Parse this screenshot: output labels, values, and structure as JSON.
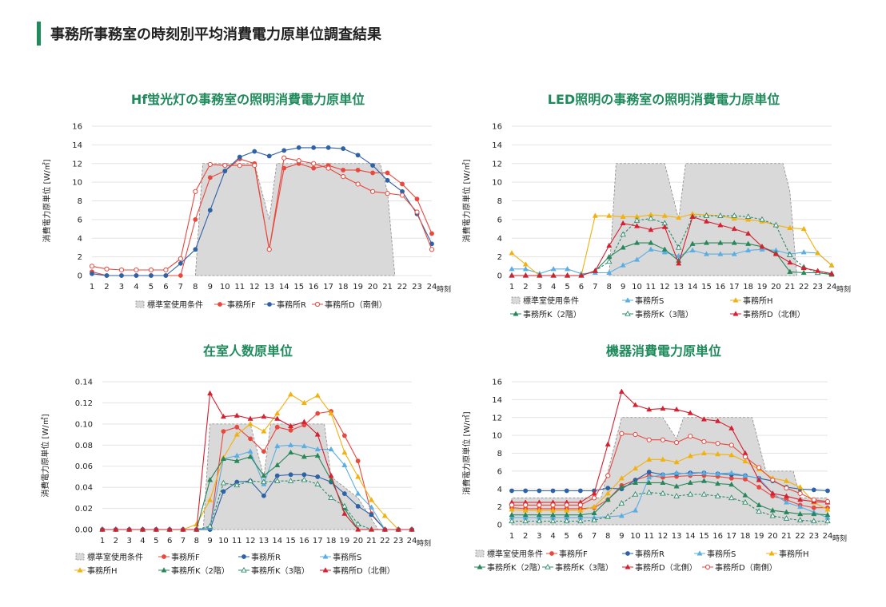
{
  "page": {
    "title": "事務所事務室の時刻別平均消費電力原単位調査結果"
  },
  "colors": {
    "accent": "#1f8a5c",
    "standard_fill": "#d9d9d9",
    "standard_stroke": "#8c8c8c",
    "F": "#e8483e",
    "R": "#2e62a6",
    "D_south": "#e8483e",
    "S": "#5aaee3",
    "H": "#f2b10c",
    "K2": "#27875a",
    "K3": "#2e8b6a",
    "D_north": "#d62030"
  },
  "chart_data": [
    {
      "type": "line",
      "title": "Hf蛍光灯の事務室の照明消費電力原単位",
      "ylabel": "消費電力原単位 [W/㎡]",
      "xunit": "時刻",
      "x": [
        1,
        2,
        3,
        4,
        5,
        6,
        7,
        8,
        9,
        10,
        11,
        12,
        13,
        14,
        15,
        16,
        17,
        18,
        19,
        20,
        21,
        22,
        23,
        24
      ],
      "ylim": [
        0,
        16
      ],
      "yticks": [
        "0",
        "2",
        "4",
        "6",
        "8",
        "10",
        "12",
        "14",
        "16"
      ],
      "grid": true,
      "legend_position": "bottom",
      "standard": {
        "name": "標準室使用条件",
        "points": [
          [
            8,
            0
          ],
          [
            8.5,
            12
          ],
          [
            12,
            12
          ],
          [
            13,
            6
          ],
          [
            13.5,
            12
          ],
          [
            20.5,
            12
          ],
          [
            21,
            9
          ],
          [
            21.5,
            0
          ]
        ]
      },
      "series": [
        {
          "name": "事務所F",
          "color": "#e8483e",
          "marker": "circle",
          "values": [
            0.4,
            0,
            0,
            0,
            0,
            0,
            0,
            6,
            10.5,
            11.2,
            12.5,
            12,
            2.8,
            11.5,
            12,
            11.5,
            11.8,
            11.3,
            11.3,
            11,
            11,
            9.8,
            8.2,
            4.5
          ]
        },
        {
          "name": "事務所R",
          "color": "#2e62a6",
          "marker": "circle",
          "values": [
            0.2,
            0,
            0,
            0,
            0,
            0,
            1.3,
            2.8,
            7,
            11.2,
            12.7,
            13.3,
            12.8,
            13.4,
            13.7,
            13.7,
            13.7,
            13.6,
            12.9,
            11.8,
            10.2,
            9,
            6.6,
            3.4
          ]
        },
        {
          "name": "事務所D（南側）",
          "color": "#e8483e",
          "marker": "open-circle",
          "values": [
            1,
            0.7,
            0.6,
            0.6,
            0.6,
            0.6,
            1.8,
            9,
            11.9,
            11.8,
            11.8,
            11.8,
            2.8,
            12.6,
            12.3,
            12,
            11.5,
            10.6,
            9.8,
            9,
            8.8,
            8.6,
            6.8,
            2.8
          ]
        }
      ]
    },
    {
      "type": "line",
      "title": "LED照明の事務室の照明消費電力原単位",
      "ylabel": "消費電力原単位 [W/㎡]",
      "xunit": "時刻",
      "x": [
        1,
        2,
        3,
        4,
        5,
        6,
        7,
        8,
        9,
        10,
        11,
        12,
        13,
        14,
        15,
        16,
        17,
        18,
        19,
        20,
        21,
        22,
        23,
        24
      ],
      "ylim": [
        0,
        16
      ],
      "yticks": [
        "0",
        "2",
        "4",
        "6",
        "8",
        "10",
        "12",
        "14",
        "16"
      ],
      "grid": true,
      "legend_position": "bottom",
      "standard": {
        "name": "標準室使用条件",
        "points": [
          [
            8,
            0
          ],
          [
            8.5,
            12
          ],
          [
            12,
            12
          ],
          [
            13,
            6
          ],
          [
            13.5,
            12
          ],
          [
            20.5,
            12
          ],
          [
            21,
            9
          ],
          [
            21.5,
            0
          ]
        ]
      },
      "series": [
        {
          "name": "事務所S",
          "color": "#5aaee3",
          "marker": "triangle",
          "values": [
            0.7,
            0.7,
            0.2,
            0.7,
            0.7,
            0.2,
            0.3,
            0.3,
            1.1,
            1.7,
            2.8,
            2.5,
            2.1,
            2.7,
            2.3,
            2.3,
            2.3,
            2.7,
            2.8,
            2.7,
            2.3,
            2.5,
            2.4,
            1.1
          ]
        },
        {
          "name": "事務所H",
          "color": "#f2b10c",
          "marker": "triangle",
          "values": [
            2.4,
            1.2,
            0,
            0,
            0,
            0,
            6.4,
            6.4,
            6.3,
            6.3,
            6.5,
            6.4,
            6.2,
            6.6,
            6.5,
            6.4,
            6.1,
            6,
            5.8,
            5.4,
            5.1,
            5,
            2.4,
            1.1
          ]
        },
        {
          "name": "事務所K（2階）",
          "color": "#27875a",
          "marker": "triangle",
          "values": [
            0,
            0,
            0,
            0,
            0,
            0,
            0.5,
            2,
            3,
            3.5,
            3.5,
            2.8,
            1.6,
            3.4,
            3.5,
            3.5,
            3.5,
            3.4,
            3.1,
            2.4,
            0.4,
            0.3,
            0.3,
            0.1
          ]
        },
        {
          "name": "事務所K（3階）",
          "color": "#2e8b6a",
          "marker": "triangle-open",
          "values": [
            0,
            0,
            0,
            0,
            0,
            0,
            0.5,
            1.5,
            4.4,
            5.9,
            6.1,
            5.6,
            3,
            6.3,
            6.4,
            6.4,
            6.4,
            6.3,
            6,
            5.4,
            2.2,
            0.9,
            0.3,
            0.2
          ]
        },
        {
          "name": "事務所D（北側）",
          "color": "#d62030",
          "marker": "triangle",
          "values": [
            0,
            0,
            0,
            0,
            0,
            0,
            0.5,
            3.2,
            5.6,
            5.3,
            4.9,
            5.2,
            1.3,
            6.3,
            5.8,
            5.4,
            5,
            4.5,
            3.1,
            2.3,
            1.4,
            0.8,
            0.5,
            0.2
          ]
        }
      ]
    },
    {
      "type": "line",
      "title": "在室人数原単位",
      "ylabel": "消費電力原単位 [W/㎡]",
      "xunit": "時刻",
      "x": [
        1,
        2,
        3,
        4,
        5,
        6,
        7,
        8,
        9,
        10,
        11,
        12,
        13,
        14,
        15,
        16,
        17,
        18,
        19,
        20,
        21,
        22,
        23,
        24
      ],
      "ylim": [
        0,
        0.14
      ],
      "yticks": [
        "0.00",
        "0.02",
        "0.04",
        "0.06",
        "0.08",
        "0.10",
        "0.12",
        "0.14"
      ],
      "grid": true,
      "legend_position": "bottom",
      "standard": {
        "name": "標準室使用条件",
        "points": [
          [
            8.5,
            0
          ],
          [
            9,
            0.1
          ],
          [
            12,
            0.1
          ],
          [
            13,
            0.05
          ],
          [
            13.5,
            0.1
          ],
          [
            17.5,
            0.1
          ],
          [
            18,
            0.05
          ],
          [
            20,
            0.03
          ],
          [
            21.5,
            0
          ]
        ]
      },
      "series": [
        {
          "name": "事務所F",
          "color": "#e8483e",
          "marker": "circle",
          "values": [
            0,
            0,
            0,
            0,
            0,
            0,
            0,
            0,
            0,
            0.093,
            0.097,
            0.086,
            0.074,
            0.097,
            0.094,
            0.099,
            0.11,
            0.112,
            0.089,
            0.065,
            0.015,
            0,
            0,
            0
          ]
        },
        {
          "name": "事務所R",
          "color": "#2e62a6",
          "marker": "circle",
          "values": [
            0,
            0,
            0,
            0,
            0,
            0,
            0,
            0,
            0,
            0.036,
            0.045,
            0.046,
            0.032,
            0.051,
            0.052,
            0.052,
            0.05,
            0.045,
            0.034,
            0.022,
            0.014,
            0,
            0,
            0
          ]
        },
        {
          "name": "事務所S",
          "color": "#5aaee3",
          "marker": "triangle",
          "values": [
            0,
            0,
            0,
            0,
            0,
            0,
            0,
            0,
            0.002,
            0.067,
            0.07,
            0.074,
            0.043,
            0.079,
            0.08,
            0.079,
            0.076,
            0.076,
            0.061,
            0.034,
            0.021,
            0,
            0,
            0
          ]
        },
        {
          "name": "事務所H",
          "color": "#f2b10c",
          "marker": "triangle",
          "values": [
            0,
            0,
            0,
            0,
            0,
            0,
            0,
            0.005,
            0.028,
            0.068,
            0.09,
            0.1,
            0.093,
            0.11,
            0.128,
            0.12,
            0.127,
            0.11,
            0.073,
            0.05,
            0.028,
            0.013,
            0,
            0
          ]
        },
        {
          "name": "事務所K（2階）",
          "color": "#27875a",
          "marker": "triangle",
          "values": [
            0,
            0,
            0,
            0,
            0,
            0,
            0,
            0,
            0.047,
            0.067,
            0.065,
            0.069,
            0.051,
            0.061,
            0.073,
            0.069,
            0.07,
            0.047,
            0.02,
            0,
            0,
            0,
            0,
            0
          ]
        },
        {
          "name": "事務所K（3階）",
          "color": "#2e8b6a",
          "marker": "triangle-open",
          "values": [
            0,
            0,
            0,
            0,
            0,
            0,
            0,
            0,
            0.003,
            0.044,
            0.042,
            0.046,
            0.045,
            0.046,
            0.046,
            0.047,
            0.043,
            0.03,
            0.022,
            0.005,
            0,
            0,
            0,
            0
          ]
        },
        {
          "name": "事務所D（北側）",
          "color": "#d62030",
          "marker": "triangle",
          "values": [
            0,
            0,
            0,
            0,
            0,
            0,
            0,
            0,
            0.129,
            0.107,
            0.108,
            0.105,
            0.107,
            0.105,
            0.098,
            0.102,
            0.09,
            0.051,
            0.015,
            0,
            0,
            0,
            0,
            0
          ]
        }
      ]
    },
    {
      "type": "line",
      "title": "機器消費電力原単位",
      "ylabel": "消費電力原単位 [W/㎡]",
      "xunit": "時刻",
      "x": [
        1,
        2,
        3,
        4,
        5,
        6,
        7,
        8,
        9,
        10,
        11,
        12,
        13,
        14,
        15,
        16,
        17,
        18,
        19,
        20,
        21,
        22,
        23,
        24
      ],
      "ylim": [
        0,
        16
      ],
      "yticks": [
        "0",
        "2",
        "4",
        "6",
        "8",
        "10",
        "12",
        "14",
        "16"
      ],
      "grid": true,
      "legend_position": "bottom",
      "standard": {
        "name": "標準室使用条件",
        "points": [
          [
            1,
            3
          ],
          [
            7.5,
            3
          ],
          [
            9,
            12
          ],
          [
            12,
            12
          ],
          [
            13,
            9.6
          ],
          [
            13.5,
            12
          ],
          [
            18.5,
            12
          ],
          [
            19.5,
            6
          ],
          [
            21.5,
            6
          ],
          [
            22,
            3
          ],
          [
            24,
            3
          ]
        ]
      },
      "series": [
        {
          "name": "事務所F",
          "color": "#e8483e",
          "marker": "circle",
          "values": [
            1.9,
            1.8,
            1.8,
            1.8,
            1.8,
            1.8,
            1.9,
            2.8,
            4.4,
            5,
            5.5,
            5.3,
            5.4,
            5.5,
            5.5,
            5.4,
            5.2,
            5.1,
            4.2,
            3.2,
            2.8,
            2.2,
            1.9,
            1.9
          ]
        },
        {
          "name": "事務所R",
          "color": "#2e62a6",
          "marker": "circle",
          "values": [
            3.8,
            3.8,
            3.8,
            3.8,
            3.8,
            3.8,
            3.8,
            4.1,
            4,
            5,
            5.9,
            5.6,
            5.7,
            5.8,
            5.8,
            5.7,
            5.6,
            5.5,
            5.2,
            4.9,
            4.2,
            4,
            3.9,
            3.8
          ]
        },
        {
          "name": "事務所S",
          "color": "#5aaee3",
          "marker": "triangle",
          "values": [
            0.8,
            0.8,
            0.8,
            0.8,
            0.8,
            0.8,
            0.8,
            0.9,
            1,
            1.6,
            5.3,
            5.6,
            5.8,
            5.7,
            5.8,
            5.7,
            5.8,
            5.5,
            5.2,
            3.5,
            2.5,
            2,
            1.4,
            0.8
          ]
        },
        {
          "name": "事務所H",
          "color": "#f2b10c",
          "marker": "triangle",
          "values": [
            1.7,
            1.6,
            1.6,
            1.6,
            1.6,
            1.6,
            2,
            3.5,
            5.2,
            6.3,
            7.3,
            7.3,
            7,
            7.7,
            8,
            7.9,
            7.8,
            7.1,
            6.2,
            5.2,
            4.9,
            4.2,
            2.5,
            1.7
          ]
        },
        {
          "name": "事務所K（2階）",
          "color": "#27875a",
          "marker": "triangle",
          "values": [
            1.1,
            1.1,
            1.1,
            1.1,
            1.1,
            1.1,
            1.3,
            2.8,
            4.2,
            4.7,
            4.7,
            4.7,
            4.3,
            4.7,
            4.9,
            4.6,
            4.5,
            3.3,
            2.2,
            1.6,
            1.4,
            1.2,
            1.2,
            1.1
          ]
        },
        {
          "name": "事務所K（3階）",
          "color": "#2e8b6a",
          "marker": "triangle-open",
          "values": [
            0.4,
            0.4,
            0.4,
            0.4,
            0.4,
            0.4,
            0.5,
            0.9,
            2.4,
            3.4,
            3.6,
            3.5,
            3.2,
            3.4,
            3.4,
            3.2,
            3,
            2.5,
            1.5,
            1,
            0.7,
            0.5,
            0.4,
            0.4
          ]
        },
        {
          "name": "事務所D（北側）",
          "color": "#d62030",
          "marker": "triangle",
          "values": [
            2.5,
            2.5,
            2.5,
            2.5,
            2.5,
            2.5,
            3.5,
            9,
            14.9,
            13.4,
            12.9,
            13,
            12.9,
            12.5,
            11.8,
            11.6,
            10.8,
            8,
            5,
            3.5,
            3.2,
            2.8,
            2.6,
            2.5
          ]
        },
        {
          "name": "事務所D（南側）",
          "color": "#e8483e",
          "marker": "open-circle",
          "values": [
            2.2,
            2.2,
            2.2,
            2.2,
            2.2,
            2.2,
            3,
            5.5,
            10.2,
            10.1,
            9.5,
            9.5,
            9.2,
            9.9,
            9.3,
            9.1,
            8.9,
            7.6,
            6.4,
            5,
            4.1,
            3.5,
            2.8,
            2.6
          ]
        }
      ]
    }
  ]
}
